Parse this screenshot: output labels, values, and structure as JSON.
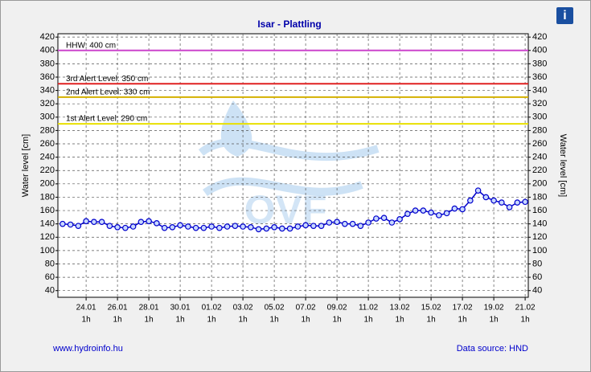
{
  "chart_data": {
    "type": "line",
    "title": "Isar - Plattling",
    "y_label": "Water level [cm]",
    "y2_label": "Water level [cm]",
    "info_icon": "i",
    "watermark": "OVF",
    "footer_left": "www.hydroinfo.hu",
    "footer_right": "Data source: HND",
    "color": "#0000cc",
    "marker": "circle",
    "grid": true,
    "xlim": [
      22.2,
      52.2
    ],
    "xticks": [
      {
        "value": 24,
        "label": "24.01",
        "sublabel": "1h"
      },
      {
        "value": 26,
        "label": "26.01",
        "sublabel": "1h"
      },
      {
        "value": 28,
        "label": "28.01",
        "sublabel": "1h"
      },
      {
        "value": 30,
        "label": "30.01",
        "sublabel": "1h"
      },
      {
        "value": 32,
        "label": "01.02",
        "sublabel": "1h"
      },
      {
        "value": 34,
        "label": "03.02",
        "sublabel": "1h"
      },
      {
        "value": 36,
        "label": "05.02",
        "sublabel": "1h"
      },
      {
        "value": 38,
        "label": "07.02",
        "sublabel": "1h"
      },
      {
        "value": 40,
        "label": "09.02",
        "sublabel": "1h"
      },
      {
        "value": 42,
        "label": "11.02",
        "sublabel": "1h"
      },
      {
        "value": 44,
        "label": "13.02",
        "sublabel": "1h"
      },
      {
        "value": 46,
        "label": "15.02",
        "sublabel": "1h"
      },
      {
        "value": 48,
        "label": "17.02",
        "sublabel": "1h"
      },
      {
        "value": 50,
        "label": "19.02",
        "sublabel": "1h"
      },
      {
        "value": 52,
        "label": "21.02",
        "sublabel": "1h"
      }
    ],
    "ylim": [
      30,
      425
    ],
    "yticks": [
      40,
      60,
      80,
      100,
      120,
      140,
      160,
      180,
      200,
      220,
      240,
      260,
      280,
      300,
      320,
      340,
      360,
      380,
      400,
      420
    ],
    "y2lim": [
      30,
      425
    ],
    "y2ticks": [
      40,
      60,
      80,
      100,
      120,
      140,
      160,
      180,
      200,
      220,
      240,
      260,
      280,
      300,
      320,
      340,
      360,
      380,
      400,
      420
    ],
    "thresholds": [
      {
        "label": "HHW: 400 cm",
        "value": 400,
        "color": "#cc44cc"
      },
      {
        "label": "3rd Alert Level: 350 cm",
        "value": 350,
        "color": "#e02020"
      },
      {
        "label": "2nd Alert Level: 330 cm",
        "value": 330,
        "color": "#d4b000"
      },
      {
        "label": "1st Alert Level: 290 cm",
        "value": 290,
        "color": "#e8e000"
      }
    ],
    "x": [
      22.5,
      23,
      23.5,
      24,
      24.5,
      25,
      25.5,
      26,
      26.5,
      27,
      27.5,
      28,
      28.5,
      29,
      29.5,
      30,
      30.5,
      31,
      31.5,
      32,
      32.5,
      33,
      33.5,
      34,
      34.5,
      35,
      35.5,
      36,
      36.5,
      37,
      37.5,
      38,
      38.5,
      39,
      39.5,
      40,
      40.5,
      41,
      41.5,
      42,
      42.5,
      43,
      43.5,
      44,
      44.5,
      45,
      45.5,
      46,
      46.5,
      47,
      47.5,
      48,
      48.5,
      49,
      49.5,
      50,
      50.5,
      51,
      51.5,
      52
    ],
    "values": [
      140,
      139,
      137,
      144,
      143,
      143,
      137,
      135,
      134,
      136,
      143,
      144,
      141,
      134,
      135,
      138,
      136,
      134,
      134,
      136,
      134,
      136,
      137,
      136,
      135,
      132,
      133,
      135,
      133,
      133,
      136,
      138,
      137,
      137,
      142,
      143,
      140,
      140,
      137,
      142,
      148,
      149,
      142,
      147,
      155,
      160,
      160,
      157,
      153,
      156,
      163,
      162,
      175,
      190,
      180,
      175,
      172,
      165,
      172,
      173
    ]
  }
}
